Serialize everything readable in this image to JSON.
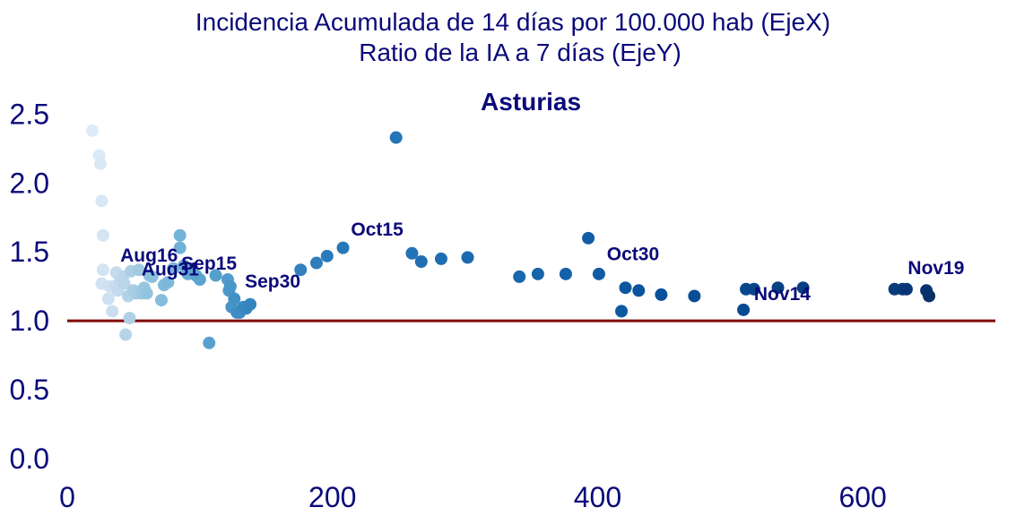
{
  "chart_data": {
    "type": "scatter",
    "title": "Incidencia Acumulada de 14 días por 100.000 hab (EjeX)",
    "subtitle": "Ratio de la IA a 7 días (EjeY)",
    "panel_title": "Asturias",
    "xlabel": "",
    "ylabel": "",
    "xlim": [
      0,
      700
    ],
    "ylim": [
      0,
      2.6
    ],
    "x_ticks": [
      "0",
      "200",
      "400",
      "600"
    ],
    "y_ticks": [
      "0.0",
      "0.5",
      "1.0",
      "1.5",
      "2.0",
      "2.5"
    ],
    "grid": false,
    "reference_line": {
      "y": 1.0,
      "color": "#7f0000"
    },
    "colors": {
      "text": "#0a0a7a",
      "start": "#deebf7",
      "end": "#08306b"
    },
    "points": [
      [
        19,
        2.38
      ],
      [
        24,
        2.2
      ],
      [
        25,
        2.14
      ],
      [
        26,
        1.87
      ],
      [
        27,
        1.62
      ],
      [
        27,
        1.37
      ],
      [
        26,
        1.27
      ],
      [
        32,
        1.25
      ],
      [
        31,
        1.16
      ],
      [
        34,
        1.07
      ],
      [
        36,
        1.25
      ],
      [
        37,
        1.35
      ],
      [
        38,
        1.22
      ],
      [
        40,
        1.29
      ],
      [
        42,
        1.32
      ],
      [
        43,
        1.27
      ],
      [
        44,
        0.9
      ],
      [
        46,
        1.18
      ],
      [
        47,
        1.02
      ],
      [
        48,
        1.36
      ],
      [
        50,
        1.22
      ],
      [
        52,
        1.2
      ],
      [
        54,
        1.37
      ],
      [
        56,
        1.2
      ],
      [
        58,
        1.24
      ],
      [
        60,
        1.2
      ],
      [
        62,
        1.33
      ],
      [
        64,
        1.32
      ],
      [
        71,
        1.15
      ],
      [
        73,
        1.26
      ],
      [
        76,
        1.28
      ],
      [
        80,
        1.38
      ],
      [
        85,
        1.62
      ],
      [
        85,
        1.53
      ],
      [
        88,
        1.4
      ],
      [
        91,
        1.34
      ],
      [
        94,
        1.36
      ],
      [
        97,
        1.33
      ],
      [
        100,
        1.3
      ],
      [
        107,
        0.84
      ],
      [
        112,
        1.33
      ],
      [
        121,
        1.3
      ],
      [
        122,
        1.22
      ],
      [
        123,
        1.25
      ],
      [
        124,
        1.1
      ],
      [
        126,
        1.16
      ],
      [
        128,
        1.06
      ],
      [
        130,
        1.06
      ],
      [
        133,
        1.1
      ],
      [
        135,
        1.09
      ],
      [
        138,
        1.12
      ],
      [
        176,
        1.37
      ],
      [
        188,
        1.42
      ],
      [
        196,
        1.47
      ],
      [
        208,
        1.53
      ],
      [
        248,
        2.33
      ],
      [
        260,
        1.49
      ],
      [
        267,
        1.43
      ],
      [
        282,
        1.45
      ],
      [
        302,
        1.46
      ],
      [
        341,
        1.32
      ],
      [
        355,
        1.34
      ],
      [
        376,
        1.34
      ],
      [
        393,
        1.6
      ],
      [
        401,
        1.34
      ],
      [
        418,
        1.07
      ],
      [
        421,
        1.24
      ],
      [
        431,
        1.22
      ],
      [
        448,
        1.19
      ],
      [
        473,
        1.18
      ],
      [
        510,
        1.08
      ],
      [
        512,
        1.23
      ],
      [
        518,
        1.23
      ],
      [
        536,
        1.24
      ],
      [
        555,
        1.24
      ],
      [
        624,
        1.23
      ],
      [
        630,
        1.23
      ],
      [
        633,
        1.23
      ],
      [
        648,
        1.22
      ],
      [
        650,
        1.18
      ]
    ],
    "annotations": [
      {
        "label": "Aug16",
        "x": 40,
        "y": 1.43
      },
      {
        "label": "Aug31",
        "x": 56,
        "y": 1.33
      },
      {
        "label": "Sep15",
        "x": 86,
        "y": 1.37
      },
      {
        "label": "Sep30",
        "x": 134,
        "y": 1.24
      },
      {
        "label": "Oct15",
        "x": 214,
        "y": 1.62
      },
      {
        "label": "Oct30",
        "x": 407,
        "y": 1.44
      },
      {
        "label": "Nov14",
        "x": 518,
        "y": 1.15
      },
      {
        "label": "Nov19",
        "x": 634,
        "y": 1.34
      }
    ]
  }
}
